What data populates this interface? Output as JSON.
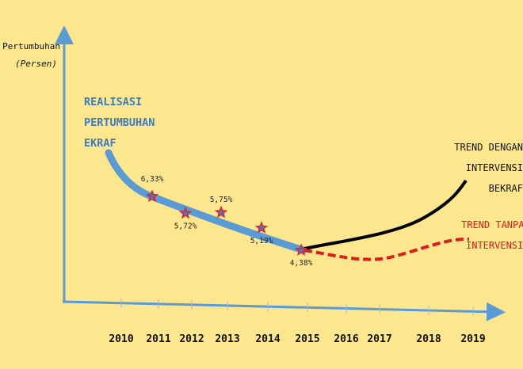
{
  "chart_data": {
    "type": "line",
    "ylabel_line1": "Pertumbuhan",
    "ylabel_line2": "(Persen)",
    "x_ticks": [
      "2010",
      "2011",
      "2012",
      "2013",
      "2014",
      "2015",
      "2016",
      "2017",
      "2018",
      "2019"
    ],
    "realisasi": {
      "label_lines": [
        "REALISASI",
        "PERTUMBUHAN",
        "EKRAF"
      ],
      "color": "#5B9BD5",
      "points": [
        {
          "x": "2011",
          "y": 6.33,
          "label": "6,33%"
        },
        {
          "x": "2012",
          "y": 5.72,
          "label": "5,72%"
        },
        {
          "x": "2013",
          "y": 5.75,
          "label": "5,75%"
        },
        {
          "x": "2014",
          "y": 5.19,
          "label": "5,19%"
        },
        {
          "x": "2015",
          "y": 4.38,
          "label": "4,38%"
        }
      ]
    },
    "trend_with_intervention": {
      "label_lines": [
        "TREND DENGAN",
        "INTERVENSI",
        "BEKRAF"
      ],
      "color": "#000000"
    },
    "trend_without_intervention": {
      "label_lines": [
        "TREND TANPA",
        "INTERVENSI"
      ],
      "color": "#E01B1B"
    },
    "marker_color": "#E0262B",
    "axis_color": "#5B9BD5"
  }
}
